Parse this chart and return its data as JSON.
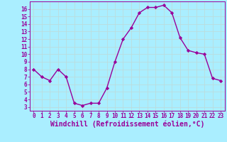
{
  "x": [
    0,
    1,
    2,
    3,
    4,
    5,
    6,
    7,
    8,
    9,
    10,
    11,
    12,
    13,
    14,
    15,
    16,
    17,
    18,
    19,
    20,
    21,
    22,
    23
  ],
  "y": [
    8.0,
    7.0,
    6.5,
    8.0,
    7.0,
    3.5,
    3.2,
    3.5,
    3.5,
    5.5,
    9.0,
    12.0,
    13.5,
    15.5,
    16.2,
    16.2,
    16.5,
    15.5,
    12.2,
    10.5,
    10.2,
    10.0,
    6.8,
    6.5
  ],
  "line_color": "#990099",
  "marker": "D",
  "marker_size": 2.2,
  "bg_color": "#aaeeff",
  "grid_color": "#cceeee",
  "xlabel": "Windchill (Refroidissement éolien,°C)",
  "ylabel": "",
  "ylim": [
    2.5,
    17.0
  ],
  "xlim": [
    -0.5,
    23.5
  ],
  "yticks": [
    3,
    4,
    5,
    6,
    7,
    8,
    9,
    10,
    11,
    12,
    13,
    14,
    15,
    16
  ],
  "xticks": [
    0,
    1,
    2,
    3,
    4,
    5,
    6,
    7,
    8,
    9,
    10,
    11,
    12,
    13,
    14,
    15,
    16,
    17,
    18,
    19,
    20,
    21,
    22,
    23
  ],
  "tick_color": "#990099",
  "spine_color": "#990099",
  "tick_fontsize": 5.5,
  "xlabel_fontsize": 7.0,
  "line_width": 1.0
}
